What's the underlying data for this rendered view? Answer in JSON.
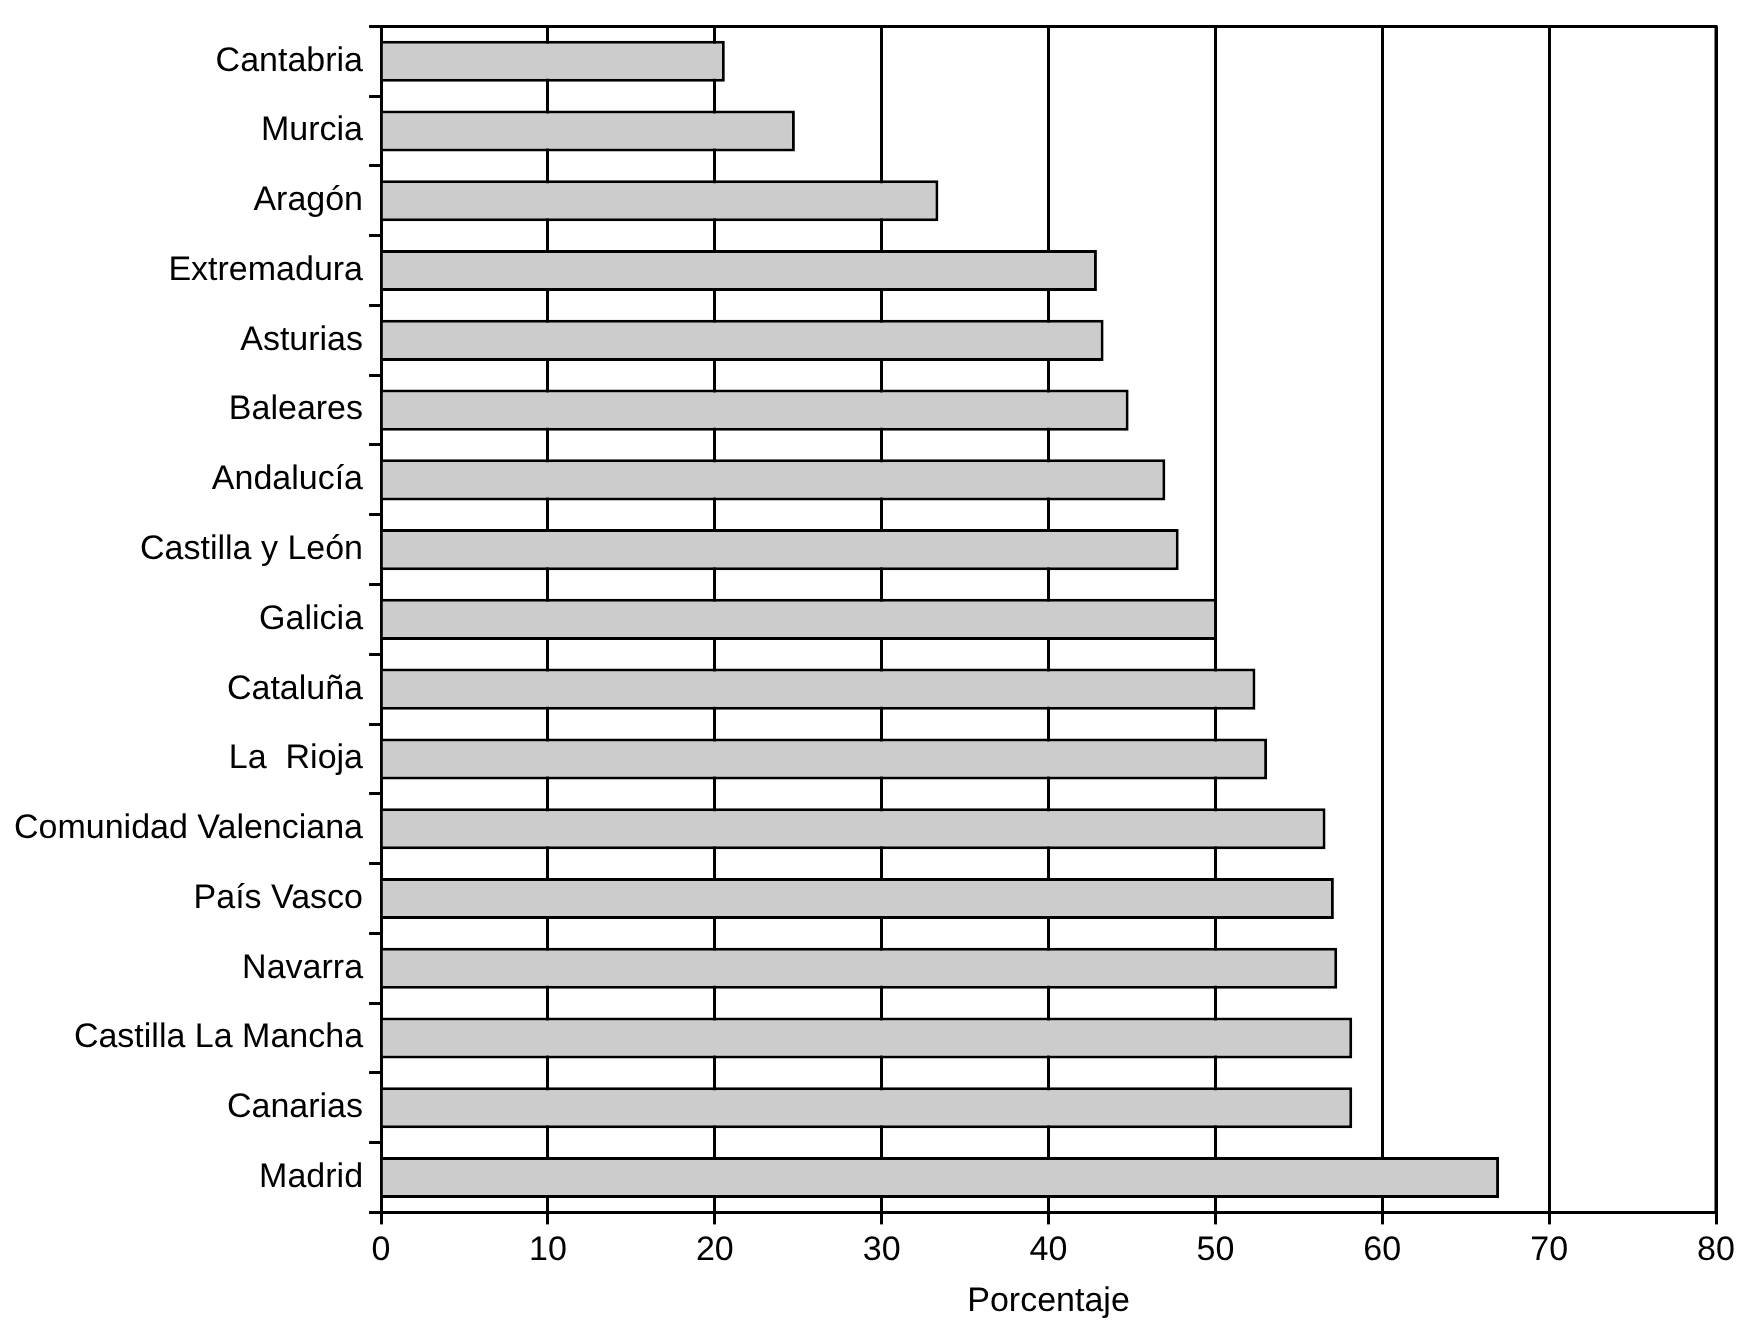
{
  "chart_data": {
    "type": "bar",
    "orientation": "horizontal",
    "xlabel": "Porcentaje",
    "categories": [
      "Cantabria",
      "Murcia",
      "Aragón",
      "Extremadura",
      "Asturias",
      "Baleares",
      "Andalucía",
      "Castilla y León",
      "Galicia",
      "Cataluña",
      "La  Rioja",
      "Comunidad Valenciana",
      "País Vasco",
      "Navarra",
      "Castilla La Mancha",
      "Canarias",
      "Madrid"
    ],
    "values": [
      20.6,
      24.8,
      33.4,
      42.9,
      43.3,
      44.8,
      47.0,
      47.8,
      50.1,
      52.4,
      53.1,
      56.6,
      57.1,
      57.3,
      58.2,
      58.2,
      67.0
    ],
    "color": "#cccccc",
    "xlim": [
      0,
      80
    ],
    "xticks": [
      0,
      10,
      20,
      30,
      40,
      50,
      60,
      70,
      80
    ],
    "grid": "x",
    "legend": false
  }
}
